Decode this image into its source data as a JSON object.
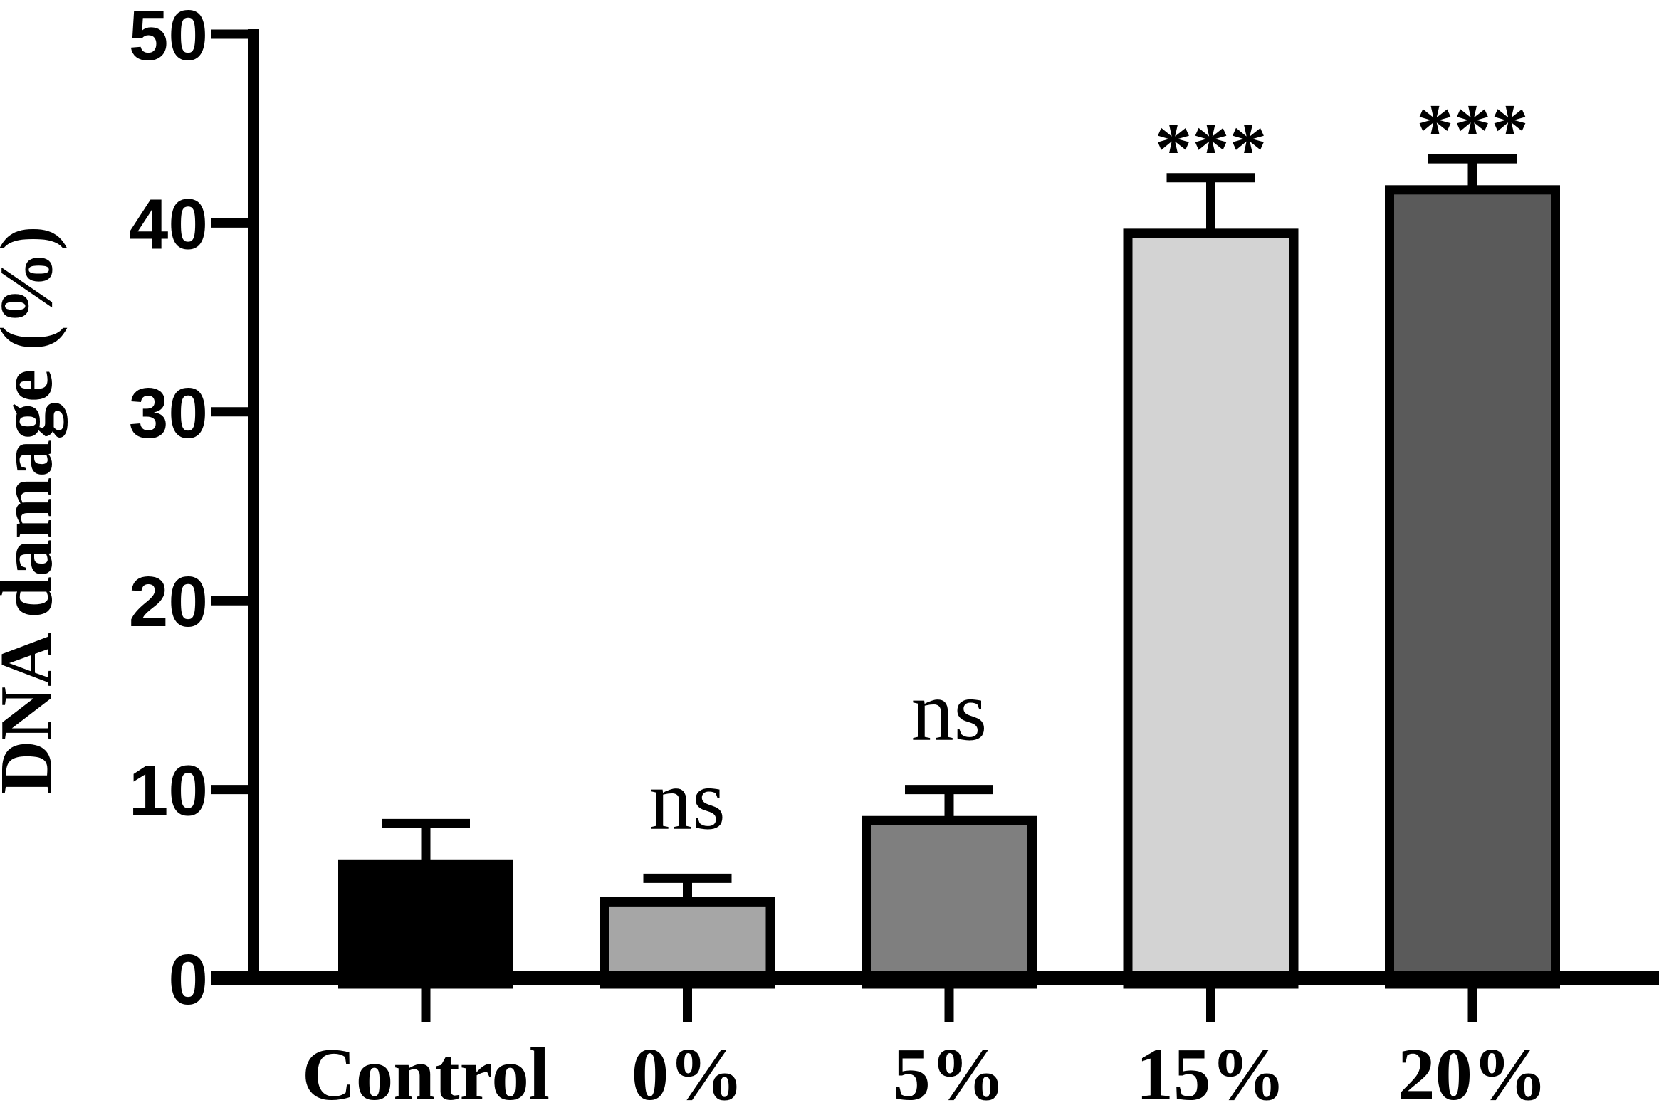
{
  "chart_data": {
    "type": "bar",
    "title": "",
    "xlabel": "",
    "ylabel": "DNA damage (%)",
    "categories": [
      "Control",
      "0%",
      "5%",
      "15%",
      "20%"
    ],
    "values": [
      6.3,
      4.3,
      8.6,
      39.7,
      42.0
    ],
    "error_sd_upper": [
      1.9,
      1.0,
      1.4,
      2.7,
      1.4
    ],
    "significance": [
      "",
      "ns",
      "ns",
      "***",
      "***"
    ],
    "bar_colors": [
      "#000000",
      "#a6a6a6",
      "#7f7f7f",
      "#d3d3d3",
      "#5a5a5a"
    ],
    "bar_border_color": "#000000",
    "axis_color": "#000000",
    "background_color": "#ffffff",
    "ylim": [
      0,
      50
    ],
    "yticks": [
      0,
      10,
      20,
      30,
      40,
      50
    ],
    "ytick_labels": [
      "0",
      "10",
      "20",
      "30",
      "40",
      "50"
    ],
    "grid": "off",
    "legend": "none",
    "error_bar_style": "upper-only with cap"
  }
}
